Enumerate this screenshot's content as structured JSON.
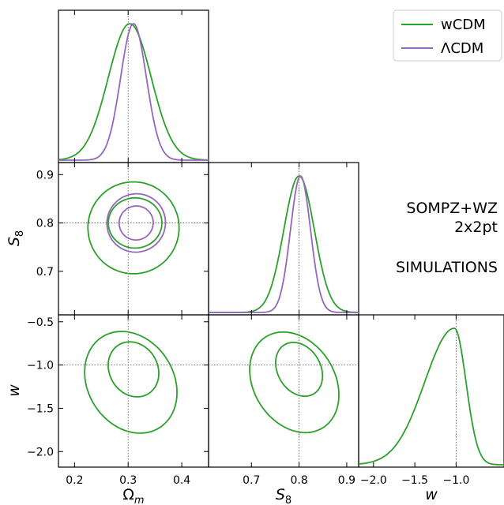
{
  "chart_data": {
    "type": "triangle-corner-plot",
    "parameters": [
      {
        "key": "om",
        "label": "Ω",
        "sub": "m",
        "range": [
          0.17,
          0.45
        ],
        "ticks": [
          0.2,
          0.3,
          0.4
        ],
        "tick_labels": [
          "0.2",
          "0.3",
          "0.4"
        ],
        "reference": 0.3
      },
      {
        "key": "s8",
        "label": "S",
        "sub": "8",
        "range": [
          0.61,
          0.925
        ],
        "ticks": [
          0.7,
          0.8,
          0.9
        ],
        "tick_labels": [
          "0.7",
          "0.8",
          "0.9"
        ],
        "reference": 0.8
      },
      {
        "key": "w",
        "label": "w",
        "sub": "",
        "range": [
          -2.18,
          -0.42
        ],
        "ticks": [
          -2.0,
          -1.5,
          -1.0,
          -0.5
        ],
        "tick_labels": [
          "−2.0",
          "−1.5",
          "−1.0",
          "−0.5"
        ],
        "reference": -1.0
      }
    ],
    "diag_xlim": {
      "s8": [
        0.61,
        0.925
      ],
      "w": [
        -2.18,
        -0.42
      ]
    },
    "diag_ticks": {
      "w": [
        -2.0,
        -1.5,
        -1.0
      ]
    },
    "diag_tick_labels": {
      "s8": [
        "0.7",
        "0.8",
        "0.9"
      ],
      "w": [
        "−2.0",
        "−1.5",
        "−1.0"
      ]
    },
    "series": [
      {
        "name": "wCDM",
        "color": "#2ca02c",
        "marginals": {
          "om": {
            "mean": 0.303,
            "sigma": 0.04
          },
          "s8": {
            "mean": 0.8,
            "sigma": 0.032
          },
          "w": {
            "peak": -1.02,
            "sigma_left": 0.36,
            "sigma_right": 0.14
          }
        },
        "contours": {
          "om_s8": [
            {
              "cx": 0.31,
              "cy": 0.79,
              "rx": 0.085,
              "ry": 0.095,
              "rot": 0
            },
            {
              "cx": 0.313,
              "cy": 0.8,
              "rx": 0.05,
              "ry": 0.052,
              "rot": 0
            }
          ],
          "om_w": [
            {
              "cx": 0.305,
              "cy": -1.2,
              "rx": 0.08,
              "ry": 0.62,
              "rot": -32
            },
            {
              "cx": 0.31,
              "cy": -1.05,
              "rx": 0.045,
              "ry": 0.33,
              "rot": -30
            }
          ],
          "s8_w": [
            {
              "cx": 0.79,
              "cy": -1.2,
              "rx": 0.085,
              "ry": 0.62,
              "rot": -32
            },
            {
              "cx": 0.8,
              "cy": -1.05,
              "rx": 0.045,
              "ry": 0.33,
              "rot": -30
            }
          ]
        }
      },
      {
        "name": "ΛCDM",
        "color": "#9467bd",
        "marginals": {
          "om": {
            "mean": 0.31,
            "sigma": 0.024
          },
          "s8": {
            "mean": 0.803,
            "sigma": 0.021
          }
        },
        "contours": {
          "om_s8": [
            {
              "cx": 0.315,
              "cy": 0.8,
              "rx": 0.055,
              "ry": 0.06,
              "rot": -40
            },
            {
              "cx": 0.315,
              "cy": 0.8,
              "rx": 0.032,
              "ry": 0.035,
              "rot": -40
            }
          ]
        }
      }
    ],
    "annotation": [
      "SOMPZ+WZ",
      "2x2pt",
      "",
      "SIMULATIONS"
    ],
    "legend_position": "top-right",
    "grid": false
  }
}
